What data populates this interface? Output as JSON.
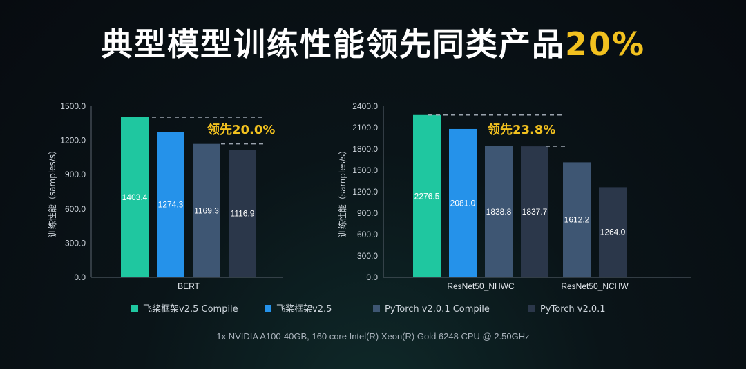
{
  "title_main": "典型模型训练性能领先同类产品",
  "title_highlight": "20%",
  "footnote": "1x NVIDIA A100-40GB, 160 core Intel(R) Xeon(R) Gold 6248 CPU @ 2.50GHz",
  "legend": [
    {
      "name": "飞桨框架v2.5 Compile",
      "color": "#1fc7a0"
    },
    {
      "name": "飞桨框架v2.5",
      "color": "#2592ea"
    },
    {
      "name": "PyTorch v2.0.1 Compile",
      "color": "#3e5673"
    },
    {
      "name": "PyTorch v2.0.1",
      "color": "#2b374a"
    }
  ],
  "chart_data": [
    {
      "type": "bar",
      "ylabel": "训练性能（samples/s）",
      "ylim": [
        0,
        1500
      ],
      "yticks": [
        "0.0",
        "300.0",
        "600.0",
        "900.0",
        "1200.0",
        "1500.0"
      ],
      "categories": [
        "BERT"
      ],
      "series": [
        {
          "name": "飞桨框架v2.5 Compile",
          "values": [
            1403.4
          ],
          "labels": [
            "1403.4"
          ]
        },
        {
          "name": "飞桨框架v2.5",
          "values": [
            1274.3
          ],
          "labels": [
            "1274.3"
          ]
        },
        {
          "name": "PyTorch v2.0.1 Compile",
          "values": [
            1169.3
          ],
          "labels": [
            "1169.3"
          ]
        },
        {
          "name": "PyTorch v2.0.1",
          "values": [
            1116.9
          ],
          "labels": [
            "1116.9"
          ]
        }
      ],
      "annotation": "领先20.0%",
      "grid": false
    },
    {
      "type": "bar",
      "ylabel": "训练性能（samples/s）",
      "ylim": [
        0,
        2400
      ],
      "yticks": [
        "0.0",
        "300.0",
        "600.0",
        "900.0",
        "1200.0",
        "1500.0",
        "1800.0",
        "2100.0",
        "2400.0"
      ],
      "categories": [
        "ResNet50_NHWC",
        "ResNet50_NCHW"
      ],
      "series": [
        {
          "name": "飞桨框架v2.5 Compile",
          "values": [
            2276.5,
            null
          ],
          "labels": [
            "2276.5",
            ""
          ]
        },
        {
          "name": "飞桨框架v2.5",
          "values": [
            2081.0,
            null
          ],
          "labels": [
            "2081.0",
            ""
          ]
        },
        {
          "name": "PyTorch v2.0.1 Compile",
          "values": [
            1838.8,
            1612.2
          ],
          "labels": [
            "1838.8",
            "1612.2"
          ]
        },
        {
          "name": "PyTorch v2.0.1",
          "values": [
            1837.7,
            1264.0
          ],
          "labels": [
            "1837.7",
            "1264.0"
          ]
        }
      ],
      "annotation": "领先23.8%",
      "grid": false
    }
  ]
}
